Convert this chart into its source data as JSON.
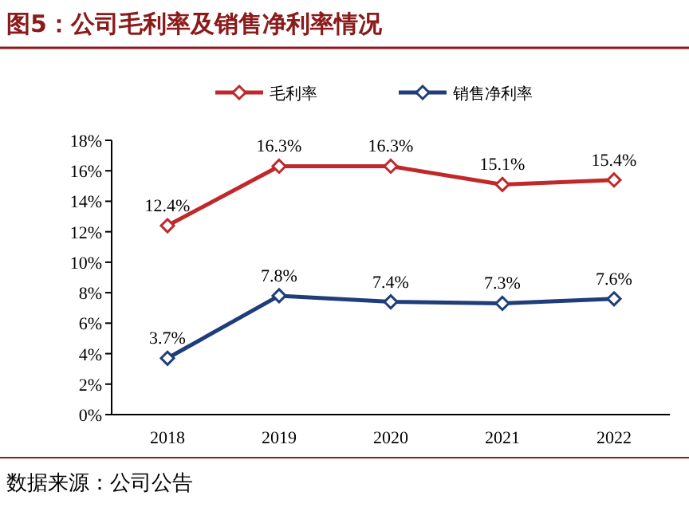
{
  "chart_data": {
    "type": "line",
    "title": "图5：公司毛利率及销售净利率情况",
    "categories": [
      "2018",
      "2019",
      "2020",
      "2021",
      "2022"
    ],
    "series": [
      {
        "name": "毛利率",
        "color": "#c0282a",
        "values": [
          12.4,
          16.3,
          16.3,
          15.1,
          15.4
        ],
        "value_labels": [
          "12.4%",
          "16.3%",
          "16.3%",
          "15.1%",
          "15.4%"
        ]
      },
      {
        "name": "销售净利率",
        "color": "#1f3d7a",
        "values": [
          3.7,
          7.8,
          7.4,
          7.3,
          7.6
        ],
        "value_labels": [
          "3.7%",
          "7.8%",
          "7.4%",
          "7.3%",
          "7.6%"
        ]
      }
    ],
    "ylim": [
      0,
      18
    ],
    "yticks": [
      {
        "value": 0,
        "label": "0%"
      },
      {
        "value": 2,
        "label": "2%"
      },
      {
        "value": 4,
        "label": "4%"
      },
      {
        "value": 6,
        "label": "6%"
      },
      {
        "value": 8,
        "label": "8%"
      },
      {
        "value": 10,
        "label": "10%"
      },
      {
        "value": 12,
        "label": "12%"
      },
      {
        "value": 14,
        "label": "14%"
      },
      {
        "value": 16,
        "label": "16%"
      },
      {
        "value": 18,
        "label": "18%"
      }
    ],
    "marker": "diamond",
    "line_style": "solid",
    "grid": false,
    "legend": "top",
    "annotations": [
      "数据来源：公司公告"
    ]
  }
}
